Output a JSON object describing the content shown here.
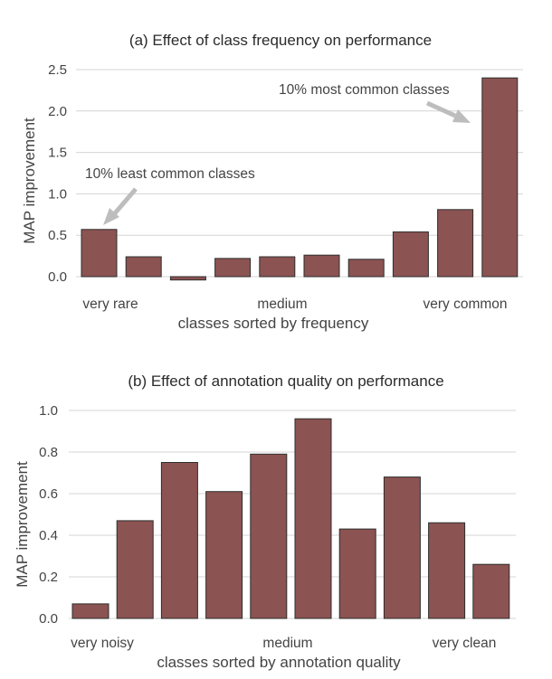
{
  "chart_data": [
    {
      "type": "bar",
      "title": "(a) Effect of class frequency on performance",
      "xlabel": "classes sorted by frequency",
      "ylabel": "MAP improvement",
      "ylim": [
        -0.05,
        2.5
      ],
      "yticks": [
        "0.0",
        "0.5",
        "1.0",
        "1.5",
        "2.0",
        "2.5"
      ],
      "category_labels": [
        "very rare",
        "medium",
        "very common"
      ],
      "values": [
        0.57,
        0.24,
        -0.04,
        0.22,
        0.24,
        0.26,
        0.21,
        0.54,
        0.81,
        2.4
      ],
      "grid": true,
      "bar_color": "#8b5352",
      "annotations": [
        {
          "text": "10% least common classes",
          "target_bar": 0
        },
        {
          "text": "10% most common classes",
          "target_bar": 9
        }
      ]
    },
    {
      "type": "bar",
      "title": "(b) Effect of annotation quality on performance",
      "xlabel": "classes sorted by annotation quality",
      "ylabel": "MAP improvement",
      "ylim": [
        0,
        1.0
      ],
      "yticks": [
        "0.0",
        "0.2",
        "0.4",
        "0.6",
        "0.8",
        "1.0"
      ],
      "category_labels": [
        "very noisy",
        "medium",
        "very clean"
      ],
      "values": [
        0.07,
        0.47,
        0.75,
        0.61,
        0.79,
        0.96,
        0.43,
        0.68,
        0.46,
        0.26
      ],
      "grid": true,
      "bar_color": "#8b5352"
    }
  ]
}
